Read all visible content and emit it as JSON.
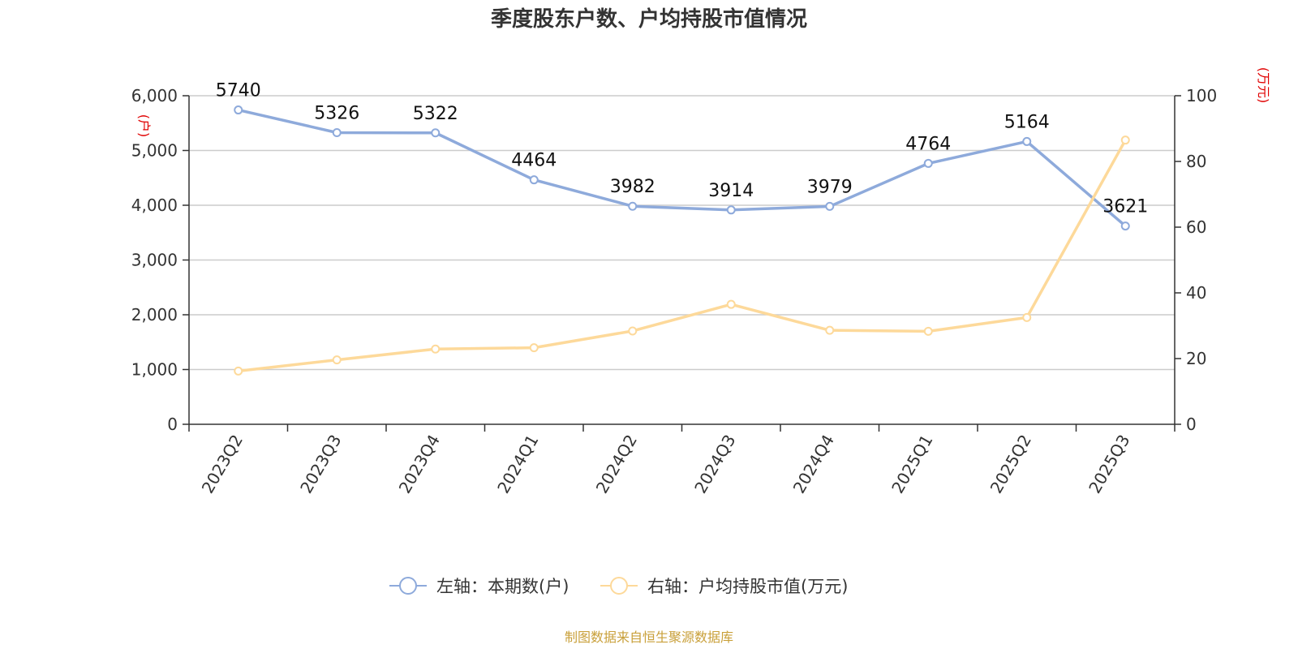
{
  "chart_data": {
    "type": "line",
    "title": "季度股东户数、户均持股市值情况",
    "categories": [
      "2023Q2",
      "2023Q3",
      "2023Q4",
      "2024Q1",
      "2024Q2",
      "2024Q3",
      "2024Q4",
      "2025Q1",
      "2025Q2",
      "2025Q3"
    ],
    "y_left": {
      "unit": "(户)",
      "ylim": [
        0,
        6000
      ],
      "ticks": [
        "0",
        "1,000",
        "2,000",
        "3,000",
        "4,000",
        "5,000",
        "6,000"
      ],
      "tick_values": [
        0,
        1000,
        2000,
        3000,
        4000,
        5000,
        6000
      ]
    },
    "y_right": {
      "unit": "(万元)",
      "ylim": [
        0,
        100
      ],
      "ticks": [
        "0",
        "20",
        "40",
        "60",
        "80",
        "100"
      ],
      "tick_values": [
        0,
        20,
        40,
        60,
        80,
        100
      ]
    },
    "series": [
      {
        "name": "左轴：本期数(户)",
        "axis": "left",
        "color": "#8eaadb",
        "values": [
          5740,
          5326,
          5322,
          4464,
          3982,
          3914,
          3979,
          4764,
          5164,
          3621
        ],
        "labels": [
          "5740",
          "5326",
          "5322",
          "4464",
          "3982",
          "3914",
          "3979",
          "4764",
          "5164",
          "3621"
        ]
      },
      {
        "name": "右轴：户均持股市值(万元)",
        "axis": "right",
        "color": "#fdd99a",
        "values": [
          16.2,
          19.6,
          22.9,
          23.3,
          28.4,
          36.5,
          28.6,
          28.3,
          32.5,
          86.5
        ]
      }
    ],
    "grid": true,
    "legend_position": "bottom"
  },
  "source_text": "制图数据来自恒生聚源数据库"
}
